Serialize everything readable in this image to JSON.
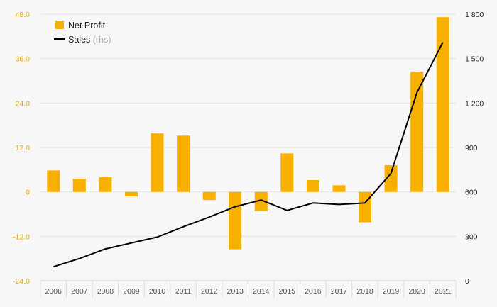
{
  "chart_data": {
    "type": "bar",
    "categories": [
      "2006",
      "2007",
      "2008",
      "2009",
      "2010",
      "2011",
      "2012",
      "2013",
      "2014",
      "2015",
      "2016",
      "2017",
      "2018",
      "2019",
      "2020",
      "2021"
    ],
    "series": [
      {
        "name": "Net Profit",
        "type": "bar",
        "axis": "left",
        "color": "#f7b000",
        "values": [
          5.8,
          3.6,
          4.0,
          -1.2,
          15.8,
          15.2,
          -2.2,
          -15.5,
          -5.2,
          10.4,
          3.2,
          1.8,
          -8.2,
          7.2,
          32.5,
          47.2
        ]
      },
      {
        "name": "Sales",
        "name_suffix": "(rhs)",
        "type": "line",
        "axis": "right",
        "color": "#000000",
        "values": [
          95,
          150,
          215,
          255,
          295,
          365,
          430,
          500,
          545,
          475,
          525,
          515,
          525,
          725,
          1270,
          1610
        ]
      }
    ],
    "left_axis": {
      "min": -24,
      "max": 48,
      "ticks": [
        "48.0",
        "36.0",
        "24.0",
        "12.0",
        "0",
        "-12.0",
        "-24.0"
      ]
    },
    "right_axis": {
      "min": 0,
      "max": 1800,
      "ticks": [
        "1 800",
        "1 500",
        "1 200",
        "900",
        "600",
        "300",
        "0"
      ]
    },
    "grid": true,
    "legend_position": "top-left",
    "colors": {
      "bar": "#f7b000",
      "line": "#000000",
      "left_tick": "#e8a900",
      "grid": "#e2e2e2"
    }
  }
}
